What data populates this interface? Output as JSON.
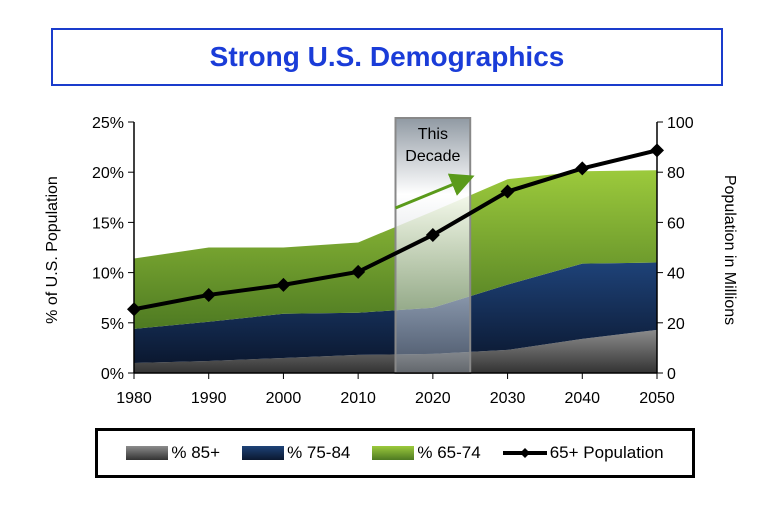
{
  "chart_data": {
    "type": "area",
    "title": "Strong U.S. Demographics",
    "x": [
      1980,
      1990,
      2000,
      2010,
      2020,
      2030,
      2040,
      2050
    ],
    "ylabel": "% of U.S. Population",
    "y2label": "Population in Millions",
    "ylim": [
      0,
      25
    ],
    "y2lim": [
      0,
      100
    ],
    "yticks": [
      "0%",
      "5%",
      "10%",
      "15%",
      "20%",
      "25%"
    ],
    "y2ticks": [
      "0",
      "20",
      "40",
      "60",
      "80",
      "100"
    ],
    "stacked": true,
    "series": [
      {
        "name": "% 85+",
        "axis": "left",
        "kind": "stacked-area",
        "values": [
          1.0,
          1.2,
          1.5,
          1.8,
          1.9,
          2.3,
          3.4,
          4.3
        ],
        "color": "#6e6e6e"
      },
      {
        "name": "% 75-84",
        "axis": "left",
        "kind": "stacked-area",
        "values": [
          3.4,
          3.9,
          4.4,
          4.2,
          4.6,
          6.5,
          7.5,
          6.7
        ],
        "color": "#17325e"
      },
      {
        "name": "% 65-74",
        "axis": "left",
        "kind": "stacked-area",
        "values": [
          7.0,
          7.4,
          6.6,
          7.0,
          9.6,
          10.5,
          9.2,
          9.2
        ],
        "color": "#7aaa30"
      },
      {
        "name": "65+ Population",
        "axis": "right",
        "kind": "line",
        "values": [
          25.4,
          31.1,
          35.1,
          40.3,
          55.0,
          72.3,
          81.5,
          88.7
        ],
        "color": "#000000"
      }
    ],
    "annotation": {
      "text_line1": "This",
      "text_line2": "Decade",
      "x_range": [
        2015,
        2025
      ],
      "arrow_color": "#5a9a1a"
    },
    "legend_position": "bottom",
    "grid": false
  }
}
